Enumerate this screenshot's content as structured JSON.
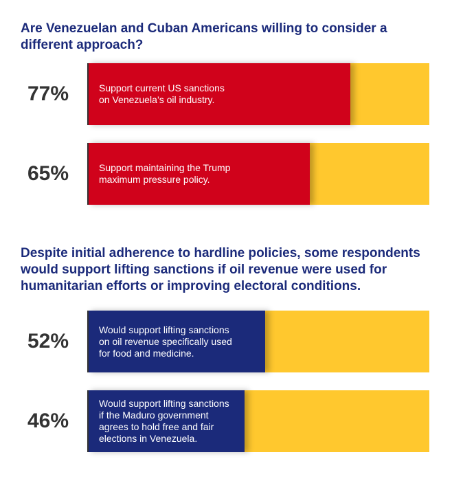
{
  "chart_data": [
    {
      "type": "bar",
      "orientation": "horizontal",
      "title": "Are Venezuelan and Cuban Americans willing to consider a different approach?",
      "categories": [
        "Support current US sanctions\non Venezuela’s oil industry.",
        "Support maintaining the Trump\nmaximum pressure policy."
      ],
      "values": [
        77,
        65
      ],
      "value_labels": [
        "77%",
        "65%"
      ],
      "color": "#d0021b",
      "track_color": "#ffc82e",
      "xlim": [
        0,
        100
      ]
    },
    {
      "type": "bar",
      "orientation": "horizontal",
      "title": "Despite initial adherence to hardline policies, some respondents would support lifting sanctions if oil revenue were used for humanitarian efforts or improving electoral conditions.",
      "categories": [
        "Would support lifting sanctions\non oil revenue specifically used\nfor food and medicine.",
        "Would support lifting sanctions\nif the Maduro government\nagrees to hold free and fair\nelections in Venezuela."
      ],
      "values": [
        52,
        46
      ],
      "value_labels": [
        "52%",
        "46%"
      ],
      "color": "#1b2a7a",
      "track_color": "#ffc82e",
      "xlim": [
        0,
        100
      ]
    }
  ]
}
